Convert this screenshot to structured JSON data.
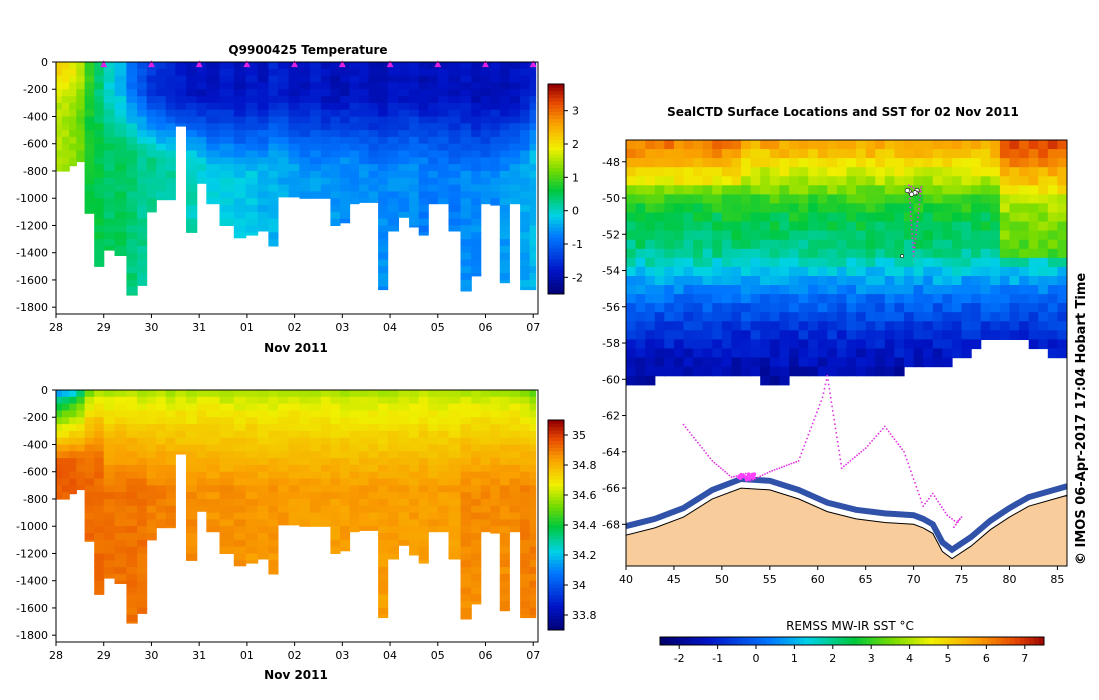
{
  "panels": {
    "temperature": {
      "title": "Q9900425  Temperature",
      "xlabel": "Nov 2011",
      "colorbar_ticks": [
        "3",
        "2",
        "1",
        "0",
        "-1",
        "-2"
      ],
      "colorbar_values": [
        3,
        2,
        1,
        0,
        -1,
        -2
      ],
      "colorbar_range": [
        -2.5,
        3.8
      ]
    },
    "salinity": {
      "title": "",
      "xlabel": "Nov 2011",
      "colorbar_ticks": [
        "35",
        "34.8",
        "34.6",
        "34.4",
        "34.2",
        "34",
        "33.8"
      ],
      "colorbar_values": [
        35,
        34.8,
        34.6,
        34.4,
        34.2,
        34,
        33.8
      ],
      "colorbar_range": [
        33.7,
        35.1
      ]
    },
    "map": {
      "title": "SealCTD Surface Locations and SST for 02 Nov 2011",
      "colorbar_label": "REMSS MW-IR SST °C",
      "colorbar_ticks": [
        "-2",
        "-1",
        "0",
        "1",
        "2",
        "3",
        "4",
        "5",
        "6",
        "7"
      ],
      "colorbar_values": [
        -2,
        -1,
        0,
        1,
        2,
        3,
        4,
        5,
        6,
        7
      ],
      "colorbar_range": [
        -2.5,
        7.5
      ],
      "credit": "© IMOS 06-Apr-2017 17:04 Hobart Time"
    }
  },
  "chart_data": [
    {
      "type": "heatmap",
      "name": "temperature-section",
      "title": "Q9900425  Temperature",
      "xlabel": "Nov 2011",
      "ylabel": "",
      "x_ticks": [
        "28",
        "29",
        "30",
        "31",
        "01",
        "02",
        "03",
        "04",
        "05",
        "06",
        "07"
      ],
      "x_tick_days": [
        0,
        1,
        2,
        3,
        4,
        5,
        6,
        7,
        8,
        9,
        10
      ],
      "y_ticks": [
        "0",
        "-200",
        "-400",
        "-600",
        "-800",
        "-1000",
        "-1200",
        "-1400",
        "-1600",
        "-1800"
      ],
      "y_tick_values": [
        0,
        -200,
        -400,
        -600,
        -800,
        -1000,
        -1200,
        -1400,
        -1600,
        -1800
      ],
      "xlim": [
        0,
        10.1
      ],
      "ylim": [
        -1850,
        0
      ],
      "surface_marker_days": [
        1,
        2,
        3,
        4,
        5,
        6,
        7,
        8,
        9,
        10
      ],
      "units": "°C",
      "profiles": {
        "day": [
          0.05,
          0.2,
          0.35,
          0.5,
          0.7,
          0.9,
          1.1,
          1.35,
          1.6,
          1.8,
          2.0,
          2.2,
          2.4,
          2.6,
          2.85,
          3.05,
          3.25,
          3.6,
          3.85,
          4.1,
          4.35,
          4.55,
          4.75,
          5.0,
          5.2,
          5.45,
          5.65,
          5.85,
          6.05,
          6.25,
          6.45,
          6.65,
          6.85,
          7.05,
          7.3,
          7.5,
          7.7,
          7.9,
          8.1,
          8.35,
          8.6,
          8.8,
          9.0,
          9.2,
          9.4,
          9.6,
          9.85,
          10.0
        ],
        "max_depth": [
          800,
          800,
          760,
          730,
          1110,
          1500,
          1380,
          1420,
          1710,
          1640,
          1100,
          1010,
          1010,
          470,
          1250,
          890,
          1040,
          1200,
          1290,
          1270,
          1240,
          1350,
          990,
          990,
          1000,
          1000,
          1000,
          1200,
          1180,
          1040,
          1030,
          1030,
          1670,
          1240,
          1140,
          1210,
          1270,
          1040,
          1040,
          1240,
          1680,
          1570,
          1040,
          1050,
          1620,
          1040,
          1670,
          1670
        ],
        "surface_temp": [
          2.2,
          2.1,
          1.9,
          1.6,
          0.9,
          0.4,
          0.0,
          -0.3,
          -0.9,
          -1.1,
          -1.4,
          -1.5,
          -1.6,
          -1.7,
          -1.8,
          -1.8,
          -1.8,
          -1.7,
          -1.8,
          -1.7,
          -1.8,
          -1.6,
          -1.7,
          -1.8,
          -1.8,
          -1.7,
          -1.8,
          -1.9,
          -1.9,
          -1.8,
          -1.8,
          -1.9,
          -1.9,
          -1.8,
          -1.8,
          -1.8,
          -1.9,
          -1.9,
          -1.8,
          -1.8,
          -1.8,
          -1.9,
          -1.9,
          -1.8,
          -1.9,
          -1.8,
          -1.7,
          -1.6
        ],
        "deep_temp": [
          1.6,
          1.5,
          1.4,
          1.2,
          0.7,
          0.6,
          0.5,
          0.5,
          0.4,
          0.3,
          0.3,
          0.2,
          0.2,
          0.1,
          0.1,
          0.0,
          -0.1,
          -0.1,
          -0.2,
          -0.2,
          -0.3,
          -0.3,
          -0.4,
          -0.4,
          -0.5,
          -0.5,
          -0.5,
          -0.5,
          -0.6,
          -0.6,
          -0.6,
          -0.6,
          -0.6,
          -0.6,
          -0.6,
          -0.6,
          -0.7,
          -0.7,
          -0.7,
          -0.7,
          -0.6,
          -0.6,
          -0.6,
          -0.6,
          -0.5,
          -0.5,
          -0.4,
          -0.3
        ],
        "mixed_layer_depth": [
          80,
          100,
          120,
          140,
          200,
          240,
          260,
          280,
          300,
          330,
          350,
          360,
          370,
          380,
          360,
          380,
          400,
          420,
          430,
          410,
          390,
          380,
          360,
          380,
          400,
          410,
          420,
          380,
          360,
          370,
          390,
          410,
          420,
          400,
          380,
          360,
          370,
          390,
          400,
          410,
          430,
          440,
          450,
          430,
          420,
          410,
          380,
          300
        ]
      }
    },
    {
      "type": "heatmap",
      "name": "salinity-section",
      "title": "",
      "xlabel": "Nov 2011",
      "ylabel": "",
      "x_ticks": [
        "28",
        "29",
        "30",
        "31",
        "01",
        "02",
        "03",
        "04",
        "05",
        "06",
        "07"
      ],
      "x_tick_days": [
        0,
        1,
        2,
        3,
        4,
        5,
        6,
        7,
        8,
        9,
        10
      ],
      "y_ticks": [
        "0",
        "-200",
        "-400",
        "-600",
        "-800",
        "-1000",
        "-1200",
        "-1400",
        "-1600",
        "-1800"
      ],
      "y_tick_values": [
        0,
        -200,
        -400,
        -600,
        -800,
        -1000,
        -1200,
        -1400,
        -1600,
        -1800
      ],
      "xlim": [
        0,
        10.1
      ],
      "ylim": [
        -1850,
        0
      ],
      "units": "PSU",
      "profiles": {
        "surface_sal": [
          34.15,
          34.2,
          34.25,
          34.35,
          34.55,
          34.6,
          34.6,
          34.62,
          34.62,
          34.6,
          34.6,
          34.62,
          34.6,
          34.62,
          34.6,
          34.62,
          34.62,
          34.6,
          34.6,
          34.62,
          34.6,
          34.6,
          34.6,
          34.62,
          34.6,
          34.6,
          34.62,
          34.6,
          34.6,
          34.6,
          34.6,
          34.6,
          34.6,
          34.6,
          34.6,
          34.6,
          34.62,
          34.6,
          34.6,
          34.6,
          34.6,
          34.6,
          34.6,
          34.6,
          34.6,
          34.6,
          34.55,
          34.5
        ],
        "deep_sal": [
          34.95,
          34.95,
          34.95,
          34.93,
          34.93,
          34.93,
          34.92,
          34.92,
          34.92,
          34.92,
          34.9,
          34.9,
          34.9,
          34.88,
          34.88,
          34.88,
          34.87,
          34.87,
          34.87,
          34.86,
          34.86,
          34.86,
          34.86,
          34.85,
          34.85,
          34.85,
          34.85,
          34.85,
          34.85,
          34.85,
          34.85,
          34.85,
          34.85,
          34.85,
          34.85,
          34.85,
          34.85,
          34.85,
          34.85,
          34.85,
          34.88,
          34.88,
          34.88,
          34.88,
          34.88,
          34.88,
          34.9,
          34.9
        ]
      }
    },
    {
      "type": "heatmap",
      "name": "sst-map",
      "title": "SealCTD Surface Locations and SST for 02 Nov 2011",
      "xlabel": "",
      "ylabel": "",
      "x_ticks": [
        "40",
        "45",
        "50",
        "55",
        "60",
        "65",
        "70",
        "75",
        "80",
        "85"
      ],
      "x_tick_values": [
        40,
        45,
        50,
        55,
        60,
        65,
        70,
        75,
        80,
        85
      ],
      "y_ticks": [
        "-48",
        "-50",
        "-52",
        "-54",
        "-56",
        "-58",
        "-60",
        "-62",
        "-64",
        "-66",
        "-68"
      ],
      "y_tick_values": [
        -48,
        -50,
        -52,
        -54,
        -56,
        -58,
        -60,
        -62,
        -64,
        -66,
        -68
      ],
      "xlim": [
        40,
        86
      ],
      "ylim": [
        -70.3,
        -46.8
      ],
      "units": "°C",
      "colorbar_label": "REMSS MW-IR SST °C",
      "ice_edge_lat": [
        -59.8,
        -59.9,
        -59.7,
        -59.6,
        -59.8,
        -59.6,
        -59.7,
        -59.8,
        -59.9,
        -59.7,
        -59.6,
        -59.4,
        -59.5,
        -59.6,
        -59.4,
        -59.2,
        -59.0,
        -58.8,
        -58.2,
        -57.6,
        -57.5,
        -57.8,
        -58.3,
        -58.6
      ],
      "ice_edge_lon": [
        40,
        42,
        44,
        46,
        48,
        50,
        52,
        54,
        56,
        58,
        60,
        62,
        64,
        66,
        68,
        70,
        72,
        74,
        76,
        78,
        80,
        82,
        84,
        86
      ],
      "coast_lat": [
        -68.6,
        -68.2,
        -67.6,
        -66.6,
        -66.0,
        -66.1,
        -66.6,
        -67.3,
        -67.7,
        -67.9,
        -68.0,
        -68.2,
        -68.5,
        -69.5,
        -69.9,
        -69.2,
        -68.3,
        -67.6,
        -67.0,
        -66.4
      ],
      "coast_lon": [
        40,
        43,
        46,
        49,
        52,
        55,
        58,
        61,
        64,
        67,
        70,
        71,
        72,
        73,
        74,
        76,
        78,
        80,
        82,
        86
      ],
      "track_lon": [
        46.0,
        47.5,
        49.0,
        51.0,
        52.5,
        53.0,
        55.0,
        58.0,
        60.5,
        61.0,
        62.5,
        65.0,
        67.0,
        69.0,
        71.0,
        72.0,
        73.5,
        74.5,
        75.0,
        74.0,
        70.5,
        69.5,
        70.0,
        70.8,
        70.6
      ],
      "track_lat": [
        -62.5,
        -63.5,
        -64.5,
        -65.4,
        -65.2,
        -65.6,
        -65.1,
        -64.5,
        -61.0,
        -59.8,
        -64.9,
        -63.8,
        -62.6,
        -64.0,
        -67.0,
        -66.3,
        -67.5,
        -67.9,
        -67.6,
        -68.3,
        -49.6,
        -49.3,
        -53.2,
        -49.4,
        -49.8
      ],
      "sst_profile": {
        "lat": [
          -47,
          -48,
          -49,
          -50,
          -51,
          -52,
          -53,
          -54,
          -55,
          -56,
          -57,
          -58,
          -59,
          -60
        ],
        "sst": [
          5.5,
          4.5,
          3.8,
          2.8,
          2.4,
          2.2,
          1.8,
          1.0,
          0.3,
          -0.3,
          -0.8,
          -1.2,
          -1.6,
          -1.8
        ]
      }
    }
  ]
}
